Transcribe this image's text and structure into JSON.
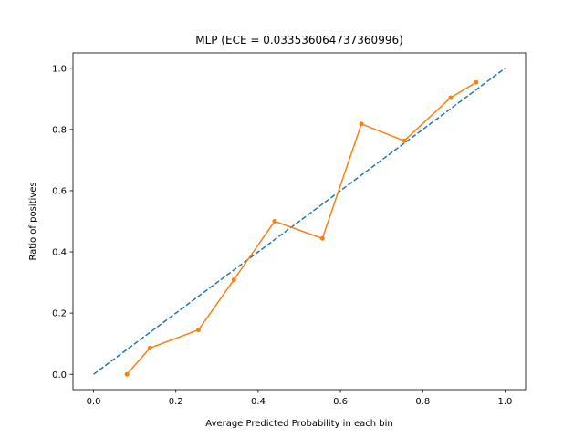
{
  "chart_data": {
    "type": "line",
    "title": "MLP (ECE = 0.033536064737360996)",
    "xlabel": "Average Predicted Probability in each bin",
    "ylabel": "Ratio of positives",
    "xlim": [
      -0.05,
      1.05
    ],
    "ylim": [
      -0.05,
      1.05
    ],
    "xticks": [
      0.0,
      0.2,
      0.4,
      0.6,
      0.8,
      1.0
    ],
    "yticks": [
      0.0,
      0.2,
      0.4,
      0.6,
      0.8,
      1.0
    ],
    "xtick_labels": [
      "0.0",
      "0.2",
      "0.4",
      "0.6",
      "0.8",
      "1.0"
    ],
    "ytick_labels": [
      "0.0",
      "0.2",
      "0.4",
      "0.6",
      "0.8",
      "1.0"
    ],
    "grid": false,
    "series": [
      {
        "style": "dashed",
        "color": "#1f77b4",
        "x": [
          0.0,
          1.0
        ],
        "y": [
          0.0,
          1.0
        ]
      },
      {
        "style": "line-markers",
        "color": "#ff7f0e",
        "x": [
          0.081,
          0.137,
          0.255,
          0.341,
          0.44,
          0.556,
          0.651,
          0.755,
          0.868,
          0.93
        ],
        "y": [
          0.0,
          0.086,
          0.145,
          0.309,
          0.5,
          0.444,
          0.818,
          0.763,
          0.904,
          0.954
        ]
      }
    ]
  }
}
